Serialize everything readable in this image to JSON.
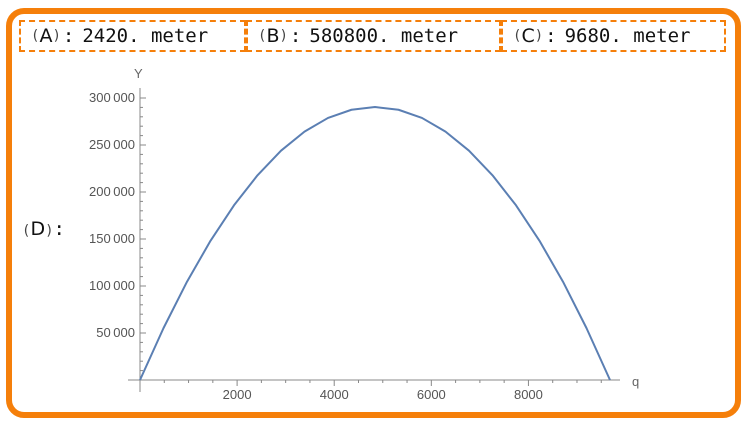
{
  "answers": [
    {
      "id": "a",
      "letter": "A",
      "value": "2420.",
      "unit": "meter"
    },
    {
      "id": "b",
      "letter": "B",
      "value": "580800.",
      "unit": "meter"
    },
    {
      "id": "c",
      "letter": "C",
      "value": "9680.",
      "unit": "meter"
    }
  ],
  "part_d": {
    "letter": "D"
  },
  "colors": {
    "accent": "#f57f0a",
    "curve": "#5b7fb3",
    "axis": "#888888"
  },
  "chart_data": {
    "type": "line",
    "title": "",
    "xlabel": "q",
    "ylabel": "Y",
    "x_ticks": [
      2000,
      4000,
      6000,
      8000
    ],
    "y_ticks": [
      50000,
      100000,
      150000,
      200000,
      250000,
      300000
    ],
    "xlim": [
      0,
      9680
    ],
    "ylim": [
      0,
      300000
    ],
    "grid": false,
    "series": [
      {
        "x": [
          0,
          484,
          968,
          1452,
          1936,
          2420,
          2904,
          3388,
          3872,
          4356,
          4840,
          5324,
          5808,
          6292,
          6776,
          7260,
          7744,
          8228,
          8712,
          9196,
          9680
        ],
        "values": [
          0,
          55176,
          104544,
          148104,
          185856,
          217800,
          243936,
          264264,
          278784,
          287496,
          290400,
          287496,
          278784,
          264264,
          243936,
          217800,
          185856,
          148104,
          104544,
          55176,
          0
        ]
      }
    ]
  }
}
